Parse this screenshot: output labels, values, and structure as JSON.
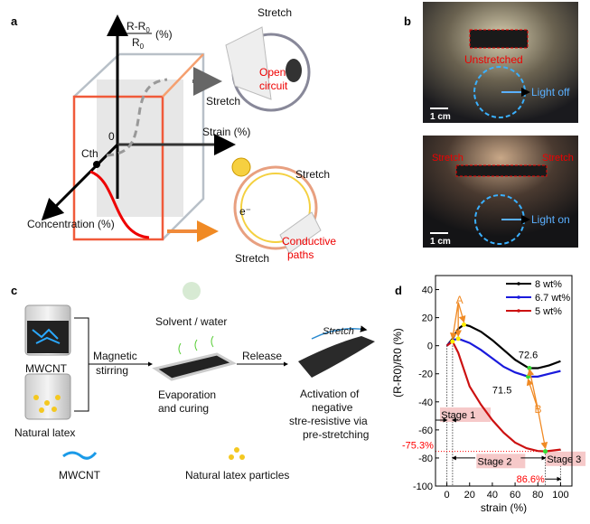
{
  "panels": {
    "a": {
      "letter": "a",
      "y_axis": {
        "numerator": "R-R",
        "numerator_sub": "0",
        "denominator": "R",
        "denominator_sub": "0",
        "unit": "(%)"
      },
      "x_axis": "Strain (%)",
      "z_axis": "Concentration (%)",
      "origin": "0",
      "threshold": "Cth",
      "top_stretch_1": "Stretch",
      "top_stretch_2": "Stretch",
      "open_circuit_1": "Open",
      "open_circuit_2": "circuit",
      "bottom_stretch_1": "Stretch",
      "bottom_stretch_2": "Stretch",
      "electron": "e⁻",
      "conductive_1": "Conductive",
      "conductive_2": "paths"
    },
    "b": {
      "letter": "b",
      "top_photo": {
        "label": "Unstretched",
        "light": "Light off",
        "scale": "1 cm"
      },
      "bottom_photo": {
        "stretch_left": "Stretch",
        "stretch_right": "Stretch",
        "light": "Light on",
        "scale": "1 cm"
      }
    },
    "c": {
      "letter": "c",
      "mwcnt": "MWCNT",
      "latex": "Natural latex",
      "magnetic_1": "Magnetic",
      "magnetic_2": "stirring",
      "solvent": "Solvent / water",
      "evap_1": "Evaporation",
      "evap_2": "and curing",
      "release": "Release",
      "stretch": "Stretch",
      "activation_1": "Activation of",
      "activation_2": "negative",
      "activation_3": "stre-resistive via",
      "activation_4": "pre-stretching",
      "legend_mwcnt": "MWCNT",
      "legend_latex": "Natural latex particles"
    },
    "d": {
      "letter": "d"
    }
  },
  "chart_data": {
    "type": "line",
    "xlabel": "strain (%)",
    "ylabel": "(R-R0)/R0 (%)",
    "xlim": [
      -10,
      110
    ],
    "ylim": [
      -100,
      50
    ],
    "xticks": [
      0,
      20,
      40,
      60,
      80,
      100
    ],
    "yticks": [
      40,
      20,
      0,
      -20,
      -40,
      -60,
      -80,
      -100
    ],
    "grid": false,
    "legend_placement": "top-right",
    "series": [
      {
        "name": "8 wt%",
        "color": "#000000",
        "x": [
          0,
          5,
          10,
          15,
          20,
          30,
          40,
          50,
          60,
          70,
          72.6,
          80,
          90,
          100
        ],
        "y": [
          0,
          5,
          12,
          15,
          14,
          10,
          4,
          -3,
          -10,
          -15,
          -16,
          -16,
          -14,
          -11
        ]
      },
      {
        "name": "6.7 wt%",
        "color": "#1a1adc",
        "x": [
          0,
          5,
          10,
          20,
          30,
          40,
          50,
          60,
          71.5,
          80,
          90,
          100
        ],
        "y": [
          0,
          4,
          5,
          2,
          -3,
          -9,
          -15,
          -19,
          -22,
          -22,
          -20,
          -18
        ]
      },
      {
        "name": "5 wt%",
        "color": "#cc1111",
        "x": [
          0,
          5,
          10,
          15,
          20,
          30,
          40,
          50,
          60,
          70,
          80,
          86.6,
          100
        ],
        "y": [
          0,
          3,
          -5,
          -17,
          -29,
          -42,
          -53,
          -62,
          -69,
          -73,
          -75,
          -75.3,
          -74
        ]
      }
    ],
    "annotations": {
      "A": "A",
      "B": "B",
      "label_726": "72.6",
      "label_715": "71.5",
      "min_value": "-75.3%",
      "min_strain": "86.6%",
      "stage1": "Stage 1",
      "stage2": "Stage 2",
      "stage3": "Stage 3"
    },
    "colors": {
      "stage_box": "#f6c9c9",
      "annot_arrow": "#f08a24",
      "marker_A": "#ffee00",
      "marker_B": "#33dd33",
      "red_label": "#ff0000"
    }
  }
}
